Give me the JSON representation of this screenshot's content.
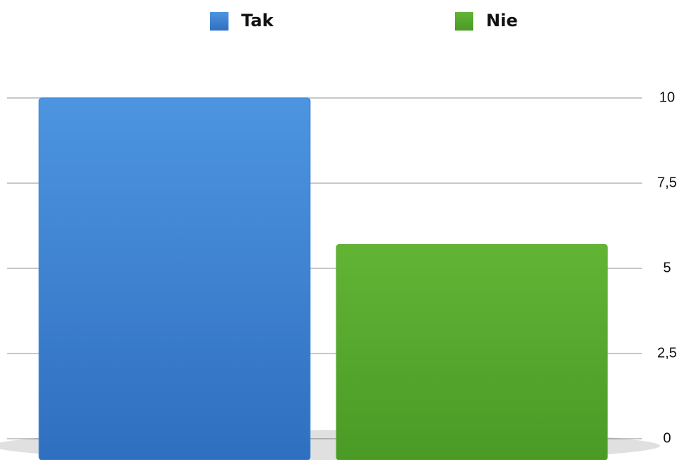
{
  "chart_data": {
    "type": "bar",
    "categories": [
      null
    ],
    "series": [
      {
        "name": "Tak",
        "color": "#3f86d6",
        "values": [
          10
        ]
      },
      {
        "name": "Nie",
        "color": "#57a82e",
        "values": [
          5.7
        ]
      }
    ],
    "ylim": [
      0,
      10
    ],
    "yticks": [
      0,
      {
        "value": 2.5,
        "label": "2,5"
      },
      5,
      {
        "value": 7.5,
        "label": "7,5"
      },
      10
    ],
    "grid": true,
    "legend": "top"
  }
}
